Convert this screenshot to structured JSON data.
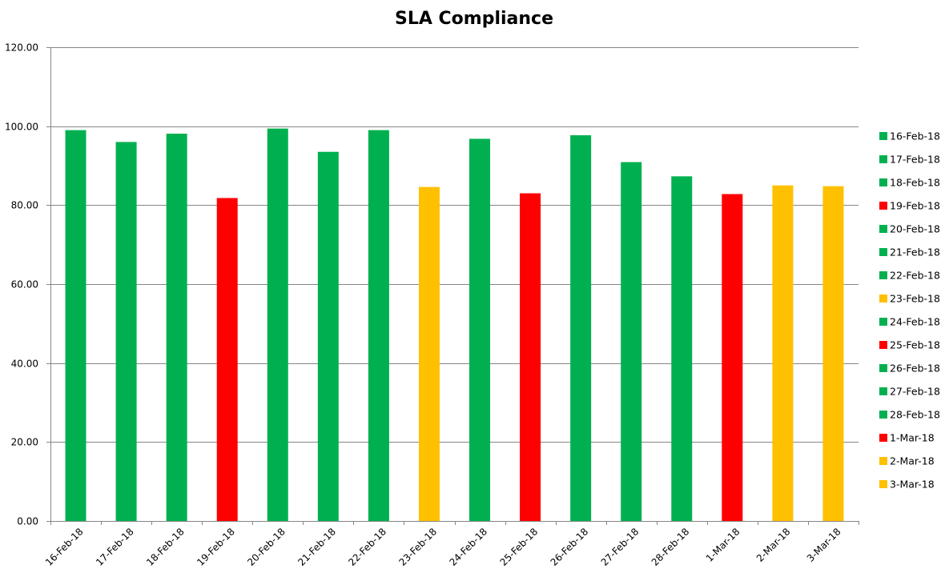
{
  "chart_data": {
    "type": "bar",
    "title": "SLA Compliance",
    "xlabel": "",
    "ylabel": "",
    "ylim": [
      0,
      120
    ],
    "yticks": [
      "0.00",
      "20.00",
      "40.00",
      "60.00",
      "80.00",
      "100.00",
      "120.00"
    ],
    "grid": true,
    "legend_position": "right",
    "categories": [
      "16-Feb-18",
      "17-Feb-18",
      "18-Feb-18",
      "19-Feb-18",
      "20-Feb-18",
      "21-Feb-18",
      "22-Feb-18",
      "23-Feb-18",
      "24-Feb-18",
      "25-Feb-18",
      "26-Feb-18",
      "27-Feb-18",
      "28-Feb-18",
      "1-Mar-18",
      "2-Mar-18",
      "3-Mar-18"
    ],
    "values": [
      99.0,
      96.0,
      98.1,
      81.8,
      99.4,
      93.5,
      99.0,
      84.6,
      96.8,
      83.0,
      97.7,
      90.9,
      87.3,
      82.8,
      85.0,
      84.8
    ],
    "colors": [
      "#00b050",
      "#00b050",
      "#00b050",
      "#ff0000",
      "#00b050",
      "#00b050",
      "#00b050",
      "#ffc000",
      "#00b050",
      "#ff0000",
      "#00b050",
      "#00b050",
      "#00b050",
      "#ff0000",
      "#ffc000",
      "#ffc000"
    ],
    "legend": [
      "16-Feb-18",
      "17-Feb-18",
      "18-Feb-18",
      "19-Feb-18",
      "20-Feb-18",
      "21-Feb-18",
      "22-Feb-18",
      "23-Feb-18",
      "24-Feb-18",
      "25-Feb-18",
      "26-Feb-18",
      "27-Feb-18",
      "28-Feb-18",
      "1-Mar-18",
      "2-Mar-18",
      "3-Mar-18"
    ]
  }
}
